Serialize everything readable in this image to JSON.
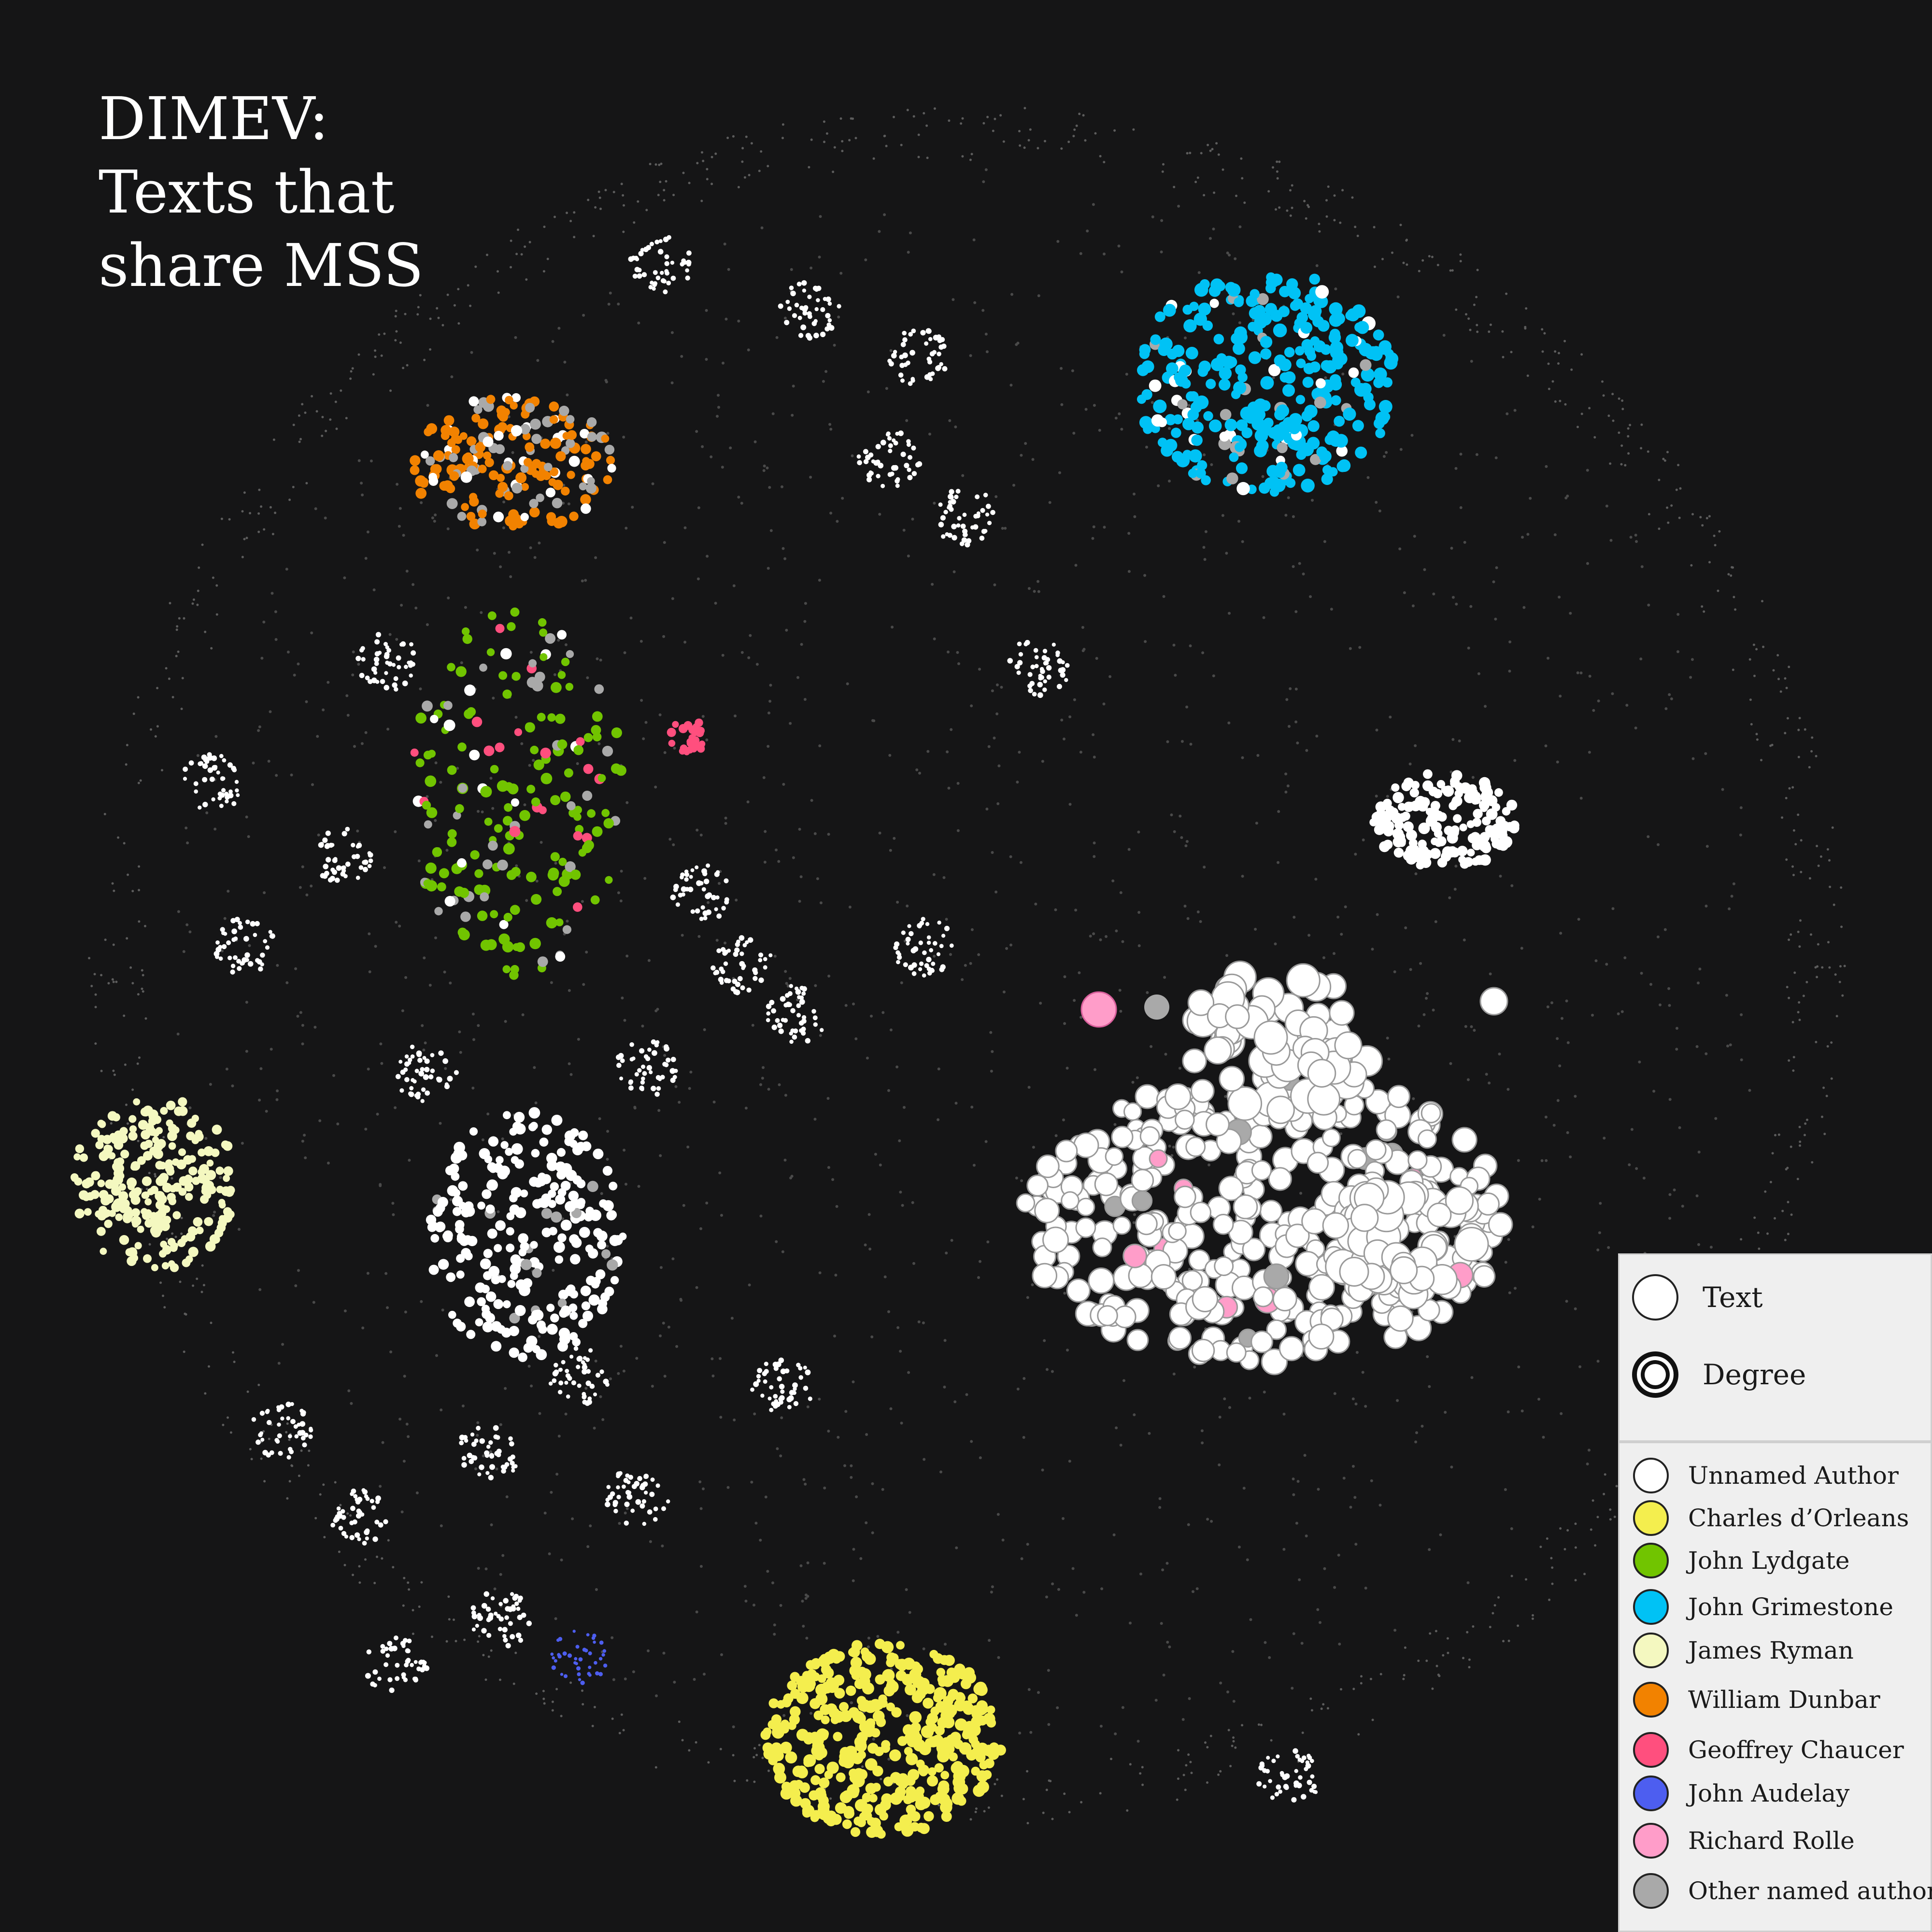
{
  "title": {
    "line1": "DIMEV:",
    "line2": "Texts that",
    "line3": "share MSS"
  },
  "size_legend": {
    "text_label": "Text",
    "degree_label": "Degree"
  },
  "authors": [
    {
      "name": "Unnamed Author",
      "color": "#ffffff"
    },
    {
      "name": "Charles d’Orleans",
      "color": "#f4ee4e"
    },
    {
      "name": "John Lydgate",
      "color": "#71c400"
    },
    {
      "name": "John Grimestone",
      "color": "#00c2f5"
    },
    {
      "name": "James Ryman",
      "color": "#f4f8c0"
    },
    {
      "name": "William Dunbar",
      "color": "#f28200"
    },
    {
      "name": "Geoffrey Chaucer",
      "color": "#ff4f7e"
    },
    {
      "name": "John Audelay",
      "color": "#4d5ef0"
    },
    {
      "name": "Richard Rolle",
      "color": "#ff9dc9"
    },
    {
      "name": "Other named author",
      "color": "#a9a9a9"
    }
  ]
}
